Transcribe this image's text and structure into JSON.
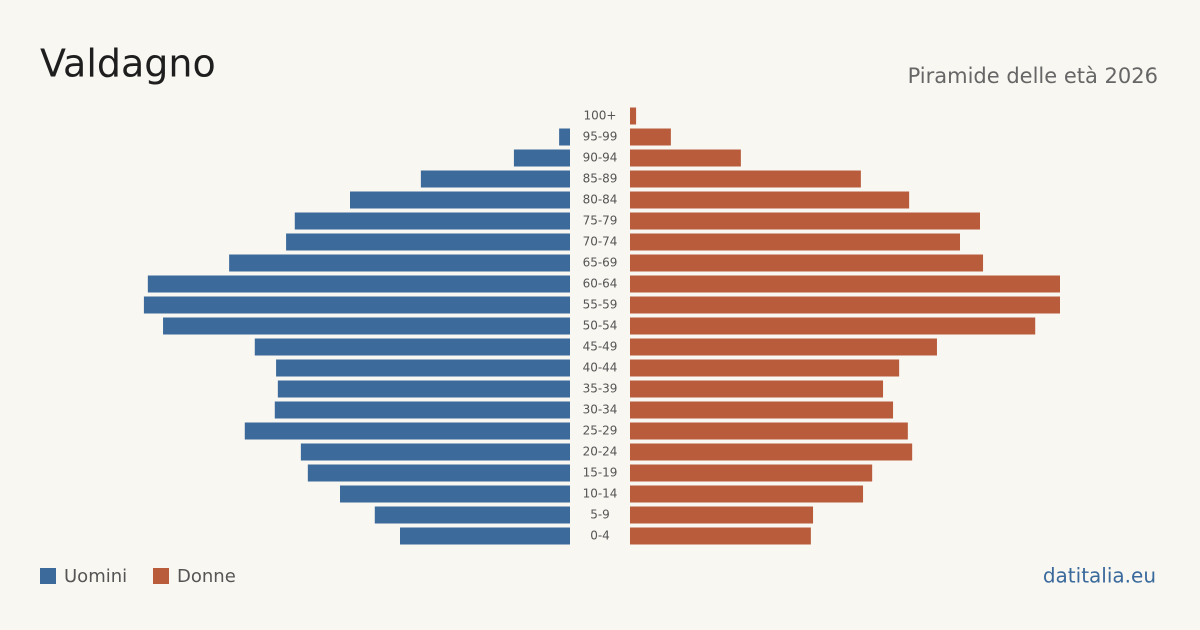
{
  "chart_data": {
    "type": "pyramid",
    "title": "Valdagno",
    "subtitle": "Piramide delle età 2026",
    "source": "datitalia.eu",
    "categories": [
      "100+",
      "95-99",
      "90-94",
      "85-89",
      "80-84",
      "75-79",
      "70-74",
      "65-69",
      "60-64",
      "55-59",
      "50-54",
      "45-49",
      "40-44",
      "35-39",
      "30-34",
      "25-29",
      "20-24",
      "15-19",
      "10-14",
      "5-9",
      "0-4"
    ],
    "series": [
      {
        "name": "Uomini",
        "color": "#3b6a9b",
        "values": [
          0,
          25,
          129,
          343,
          506,
          633,
          653,
          784,
          971,
          980,
          936,
          725,
          676,
          672,
          679,
          748,
          619,
          603,
          529,
          449,
          391
        ]
      },
      {
        "name": "Donne",
        "color": "#b95c3c",
        "values": [
          14,
          94,
          255,
          531,
          642,
          805,
          759,
          812,
          989,
          989,
          932,
          706,
          619,
          582,
          605,
          639,
          649,
          557,
          536,
          421,
          416
        ]
      }
    ]
  }
}
